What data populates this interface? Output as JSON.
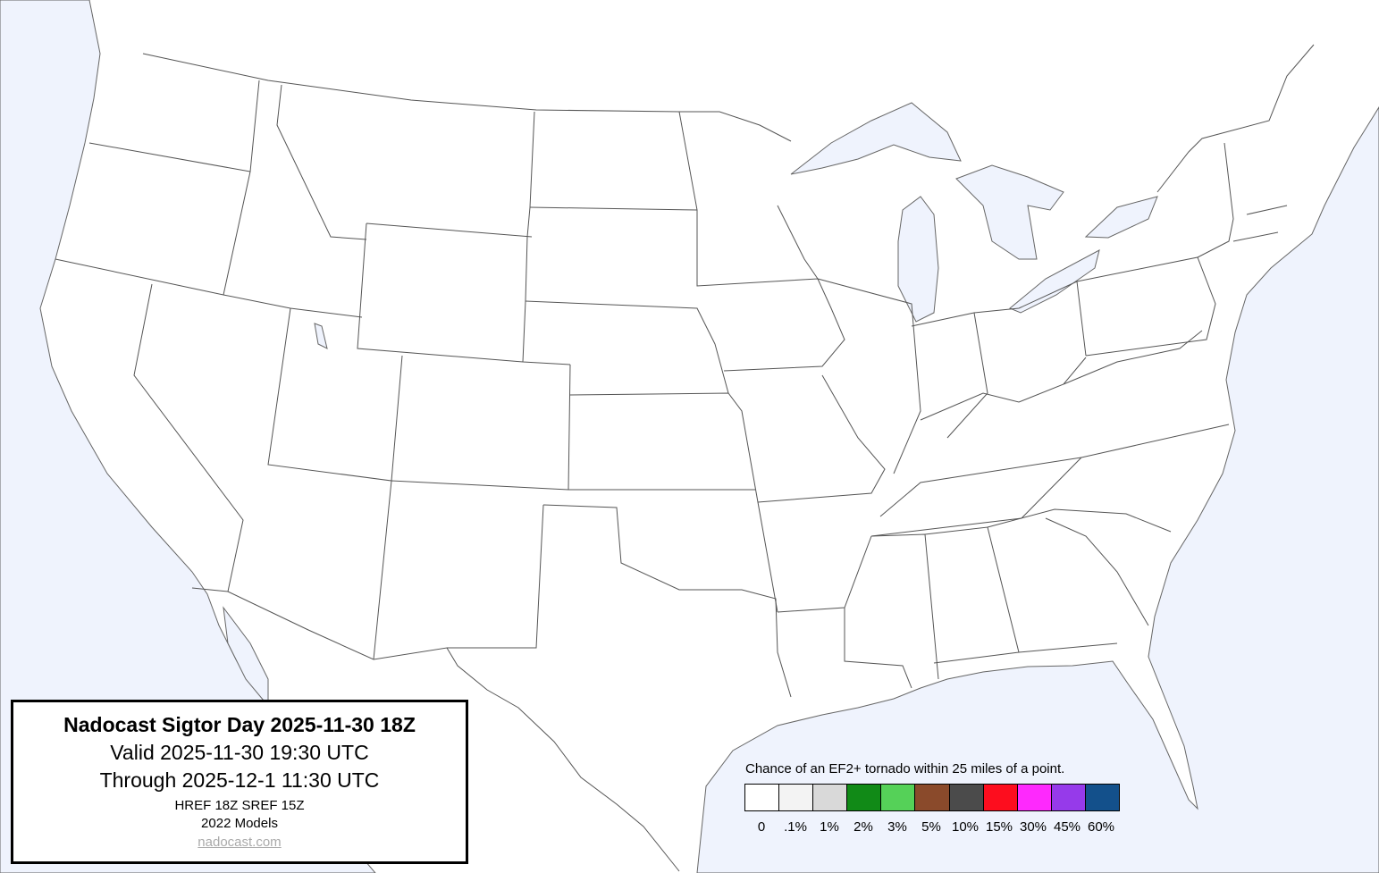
{
  "title_box": {
    "title": "Nadocast Sigtor Day 2025-11-30 18Z",
    "valid": "Valid 2025-11-30 19:30 UTC",
    "through": "Through 2025-12-1 11:30 UTC",
    "models_run": "HREF 18Z SREF 15Z",
    "models_version": "2022 Models",
    "link": "nadocast.com"
  },
  "legend": {
    "caption": "Chance of an EF2+ tornado within 25 miles of a point.",
    "bins": [
      {
        "label": "0",
        "color": "#ffffff"
      },
      {
        "label": ".1%",
        "color": "#f3f3f3"
      },
      {
        "label": "1%",
        "color": "#d9d9d9"
      },
      {
        "label": "2%",
        "color": "#118a17"
      },
      {
        "label": "3%",
        "color": "#55d158"
      },
      {
        "label": "5%",
        "color": "#8a4a2b"
      },
      {
        "label": "10%",
        "color": "#4b4b4b"
      },
      {
        "label": "15%",
        "color": "#fd0d1e"
      },
      {
        "label": "30%",
        "color": "#fe29fd"
      },
      {
        "label": "45%",
        "color": "#963aea"
      },
      {
        "label": "60%",
        "color": "#13508b"
      }
    ]
  },
  "map": {
    "land_color": "#ffffff",
    "water_color": "#eff3fd",
    "region": "Contiguous United States",
    "forecast_shading": "none"
  }
}
